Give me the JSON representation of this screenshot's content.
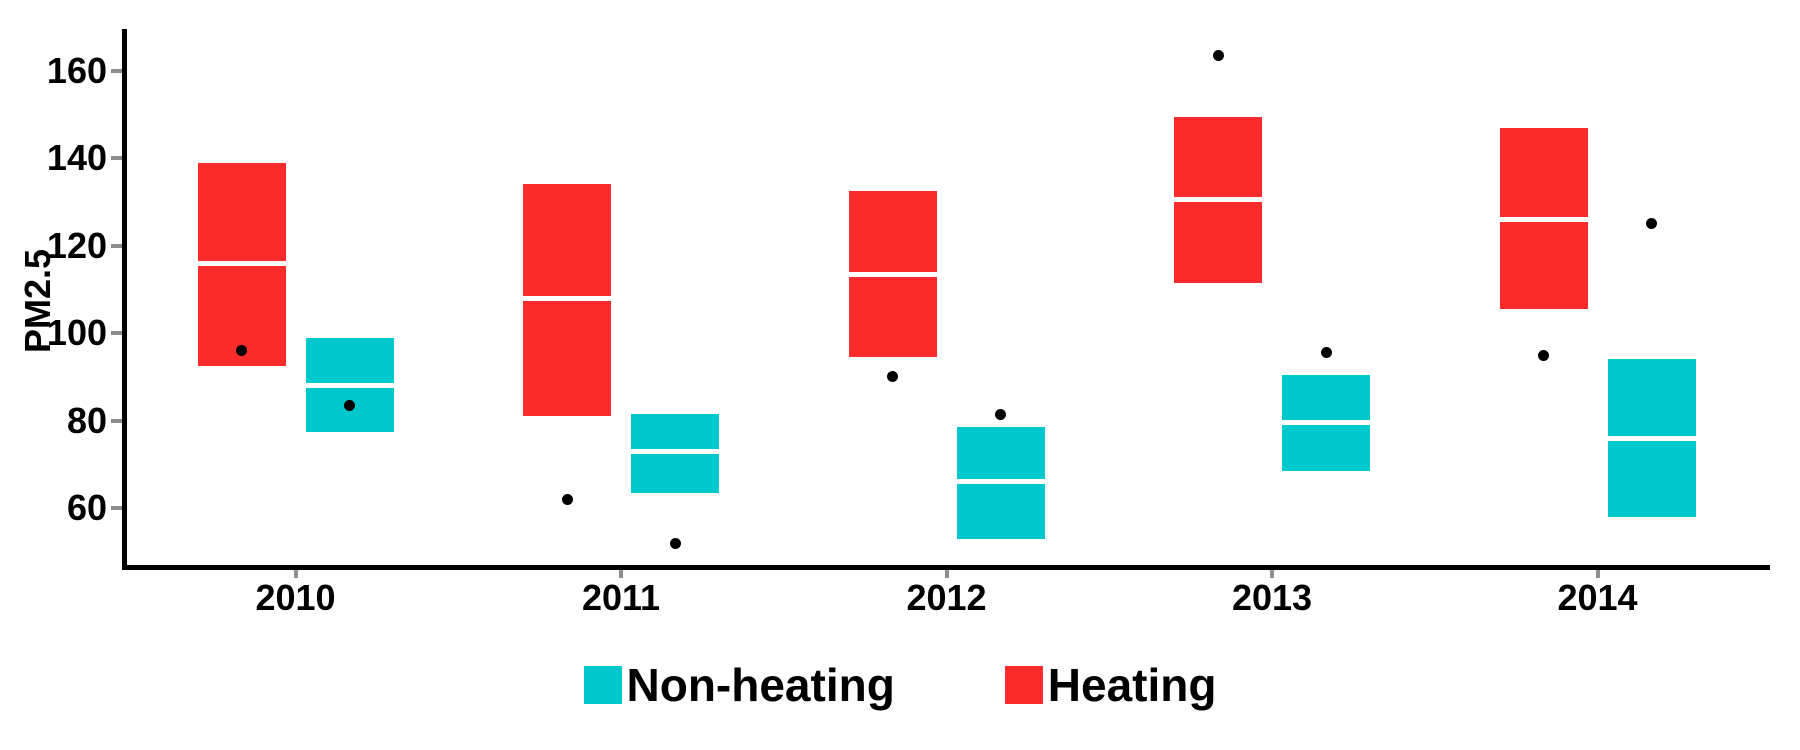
{
  "chart_data": {
    "type": "boxplot",
    "title": "",
    "xlabel": "",
    "ylabel": "PM2.5",
    "categories": [
      "2010",
      "2011",
      "2012",
      "2013",
      "2014"
    ],
    "y_ticks": [
      160,
      140,
      120,
      100,
      80,
      60
    ],
    "ylim": [
      46.5,
      169.8
    ],
    "grid": false,
    "legend_position": "bottom",
    "axis_color": "#000000",
    "tick_mark_color": "#8e8e8e",
    "outlier_color": "#000000",
    "median_line_color": "#ffffff",
    "series": [
      {
        "name": "Heating",
        "color": "#f92b2b",
        "boxes": [
          {
            "category": "2010",
            "q1": 92.5,
            "median": 116,
            "q3": 139,
            "outliers": [
              96
            ]
          },
          {
            "category": "2011",
            "q1": 81,
            "median": 108,
            "q3": 134,
            "outliers": [
              62
            ]
          },
          {
            "category": "2012",
            "q1": 94.5,
            "median": 113.5,
            "q3": 132.5,
            "outliers": [
              90
            ]
          },
          {
            "category": "2013",
            "q1": 111.5,
            "median": 130.5,
            "q3": 149.5,
            "outliers": [
              163.5
            ]
          },
          {
            "category": "2014",
            "q1": 105.5,
            "median": 126,
            "q3": 147,
            "outliers": [
              95
            ]
          }
        ]
      },
      {
        "name": "Non-heating",
        "color": "#00c9ce",
        "boxes": [
          {
            "category": "2010",
            "q1": 77.5,
            "median": 88,
            "q3": 99,
            "outliers": [
              83.5
            ]
          },
          {
            "category": "2011",
            "q1": 63.5,
            "median": 73,
            "q3": 81.5,
            "outliers": [
              52
            ]
          },
          {
            "category": "2012",
            "q1": 53,
            "median": 66,
            "q3": 78.5,
            "outliers": [
              81.5
            ]
          },
          {
            "category": "2013",
            "q1": 68.5,
            "median": 79.5,
            "q3": 90.5,
            "outliers": [
              95.5
            ]
          },
          {
            "category": "2014",
            "q1": 58,
            "median": 76,
            "q3": 94,
            "outliers": [
              125
            ]
          }
        ]
      }
    ],
    "legend": [
      {
        "label": "Non-heating",
        "color": "#00c9ce"
      },
      {
        "label": "Heating",
        "color": "#f92b2b"
      }
    ]
  }
}
